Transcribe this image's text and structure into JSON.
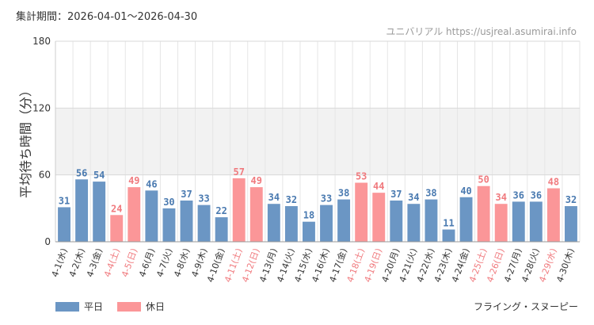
{
  "header": {
    "period": "集計期間：2026-04-01～2026-04-30",
    "site": "ユニバリアル https://usjreal.asumirai.info"
  },
  "footer": {
    "attraction": "フライング・スヌーピー"
  },
  "legend": [
    {
      "label": "平日",
      "color": "#6b96c4"
    },
    {
      "label": "休日",
      "color": "#fb9698"
    }
  ],
  "colors": {
    "weekday": "#6b96c4",
    "holiday": "#fb9698",
    "weekday_text": "#4a7ab0",
    "holiday_text": "#f07a7e"
  },
  "chart_data": {
    "type": "bar",
    "ylabel": "平均待ち時間（分）",
    "ylim": [
      0,
      180
    ],
    "yticks": [
      0,
      60,
      120,
      180
    ],
    "bands": [
      {
        "from": 60,
        "to": 120
      }
    ],
    "categories": [
      "4-1(水)",
      "4-2(木)",
      "4-3(金)",
      "4-4(土)",
      "4-5(日)",
      "4-6(月)",
      "4-7(火)",
      "4-8(水)",
      "4-9(木)",
      "4-10(金)",
      "4-11(土)",
      "4-12(日)",
      "4-13(月)",
      "4-14(火)",
      "4-15(水)",
      "4-16(木)",
      "4-17(金)",
      "4-18(土)",
      "4-19(日)",
      "4-20(月)",
      "4-21(火)",
      "4-22(水)",
      "4-23(木)",
      "4-24(金)",
      "4-25(土)",
      "4-26(日)",
      "4-27(月)",
      "4-28(火)",
      "4-29(水)",
      "4-30(木)"
    ],
    "values": [
      31,
      56,
      54,
      24,
      49,
      46,
      30,
      37,
      33,
      22,
      57,
      49,
      34,
      32,
      18,
      33,
      38,
      53,
      44,
      37,
      34,
      38,
      11,
      40,
      50,
      34,
      36,
      36,
      48,
      32
    ],
    "holiday": [
      false,
      false,
      false,
      true,
      true,
      false,
      false,
      false,
      false,
      false,
      true,
      true,
      false,
      false,
      false,
      false,
      false,
      true,
      true,
      false,
      false,
      false,
      false,
      false,
      true,
      true,
      false,
      false,
      true,
      false
    ]
  }
}
